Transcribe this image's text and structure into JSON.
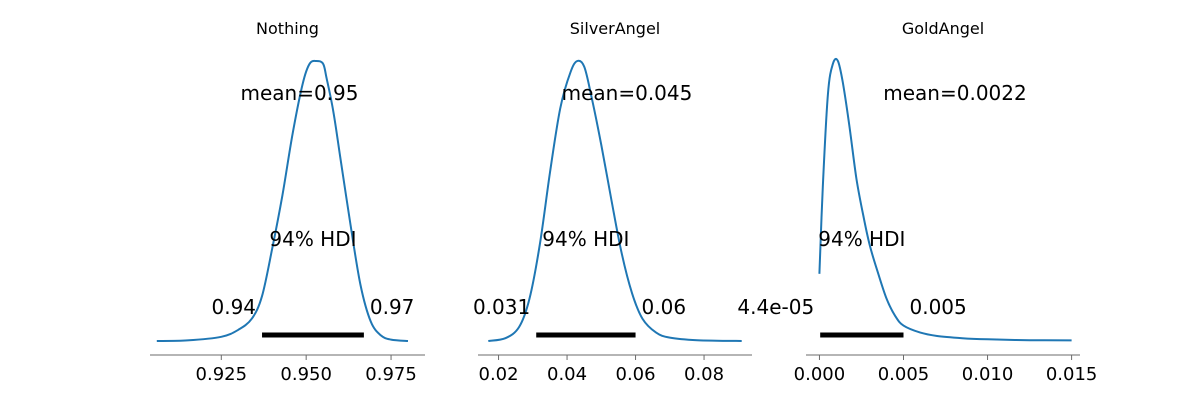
{
  "chart_data": [
    {
      "type": "area",
      "title": "Nothing",
      "mean_label": "mean=0.95",
      "hdi_label": "94% HDI",
      "hdi_low_label": "0.94",
      "hdi_high_label": "0.97",
      "hdi": [
        0.937,
        0.967
      ],
      "xlim": [
        0.904,
        0.985
      ],
      "xticks": [
        0.925,
        0.95,
        0.975
      ],
      "xtick_labels": [
        "0.925",
        "0.950",
        "0.975"
      ],
      "density": {
        "x": [
          0.906,
          0.915,
          0.925,
          0.93,
          0.934,
          0.937,
          0.94,
          0.943,
          0.946,
          0.949,
          0.951,
          0.953,
          0.955,
          0.956,
          0.958,
          0.96,
          0.963,
          0.966,
          0.969,
          0.972,
          0.975,
          0.98
        ],
        "y": [
          0.0,
          0.002,
          0.015,
          0.04,
          0.08,
          0.16,
          0.33,
          0.52,
          0.74,
          0.92,
          0.99,
          1.0,
          0.99,
          0.94,
          0.82,
          0.66,
          0.42,
          0.2,
          0.07,
          0.02,
          0.005,
          0.0
        ]
      },
      "color": "#1f77b4"
    },
    {
      "type": "area",
      "title": "SilverAngel",
      "mean_label": "mean=0.045",
      "hdi_label": "94% HDI",
      "hdi_low_label": "0.031",
      "hdi_high_label": "0.06",
      "hdi": [
        0.031,
        0.06
      ],
      "xlim": [
        0.014,
        0.094
      ],
      "xticks": [
        0.02,
        0.04,
        0.06,
        0.08
      ],
      "xtick_labels": [
        "0.02",
        "0.04",
        "0.06",
        "0.08"
      ],
      "density": {
        "x": [
          0.017,
          0.022,
          0.026,
          0.029,
          0.032,
          0.035,
          0.038,
          0.041,
          0.043,
          0.045,
          0.047,
          0.05,
          0.053,
          0.056,
          0.059,
          0.062,
          0.066,
          0.07,
          0.078,
          0.091
        ],
        "y": [
          0.0,
          0.01,
          0.05,
          0.15,
          0.34,
          0.6,
          0.83,
          0.96,
          1.0,
          0.98,
          0.88,
          0.7,
          0.5,
          0.31,
          0.17,
          0.08,
          0.03,
          0.012,
          0.003,
          0.0
        ]
      },
      "color": "#1f77b4"
    },
    {
      "type": "area",
      "title": "GoldAngel",
      "mean_label": "mean=0.0022",
      "hdi_label": "94% HDI",
      "hdi_low_label": "4.4e-05",
      "hdi_high_label": "0.005",
      "hdi": [
        4.4e-05,
        0.005
      ],
      "xlim": [
        -0.0008,
        0.0155
      ],
      "xticks": [
        0.0,
        0.005,
        0.01,
        0.015
      ],
      "xtick_labels": [
        "0.000",
        "0.005",
        "0.010",
        "0.015"
      ],
      "density": {
        "x": [
          0.0,
          0.0002,
          0.0005,
          0.0008,
          0.0011,
          0.0014,
          0.0018,
          0.0022,
          0.0026,
          0.003,
          0.0035,
          0.004,
          0.0045,
          0.005,
          0.006,
          0.007,
          0.0085,
          0.01,
          0.0125,
          0.015
        ],
        "y": [
          0.24,
          0.55,
          0.88,
          0.99,
          1.0,
          0.92,
          0.76,
          0.58,
          0.45,
          0.34,
          0.24,
          0.15,
          0.09,
          0.055,
          0.03,
          0.018,
          0.01,
          0.006,
          0.003,
          0.002
        ]
      },
      "color": "#1f77b4"
    }
  ]
}
